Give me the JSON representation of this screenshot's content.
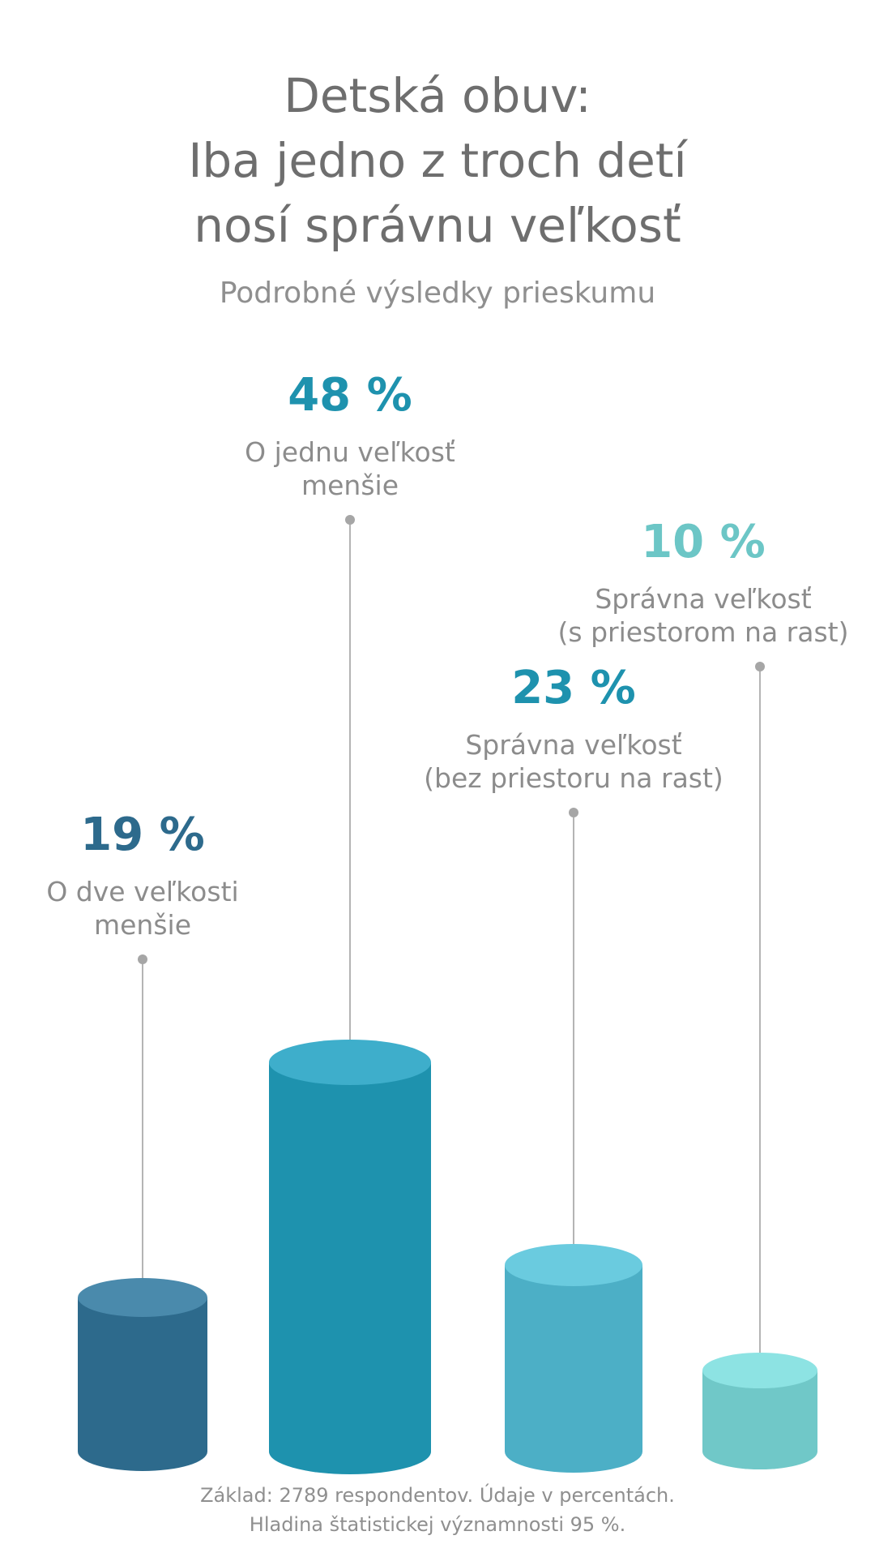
{
  "header": {
    "title_lines": [
      "Detská obuv:",
      "Iba jedno z troch detí",
      "nosí správnu veľkosť"
    ],
    "subtitle": "Podrobné výsledky prieskumu"
  },
  "chart_data": {
    "type": "bar",
    "title": "Detská obuv: Iba jedno z troch detí nosí správnu veľkosť",
    "subtitle": "Podrobné výsledky prieskumu",
    "unit": "%",
    "categories": [
      "O dve veľkosti menšie",
      "O jednu veľkosť menšie",
      "Správna veľkosť (bez priestoru na rast)",
      "Správna veľkosť (s priestorom na rast)"
    ],
    "values": [
      19,
      48,
      23,
      10
    ],
    "value_labels": [
      "19 %",
      "48 %",
      "23 %",
      "10 %"
    ],
    "label_lines": [
      [
        "O dve veľkosti",
        "menšie"
      ],
      [
        "O jednu veľkosť",
        "menšie"
      ],
      [
        "Správna veľkosť",
        "(bez priestoru na rast)"
      ],
      [
        "Správna veľkosť",
        "(s priestorom na rast)"
      ]
    ],
    "colors": [
      "#2d6a8c",
      "#1e92ae",
      "#4cafc6",
      "#70c8c8"
    ],
    "top_colors": [
      "#4a8aac",
      "#3eaecb",
      "#6acbdf",
      "#8de3e3"
    ],
    "value_colors": [
      "#2d6a8c",
      "#1e92ae",
      "#1e92ae",
      "#6cc6c6"
    ],
    "grid": false,
    "legend": "none"
  },
  "footer": {
    "lines": [
      "Základ: 2789 respondentov. Údaje v percentách.",
      "Hladina štatistickej významnosti 95 %."
    ]
  }
}
